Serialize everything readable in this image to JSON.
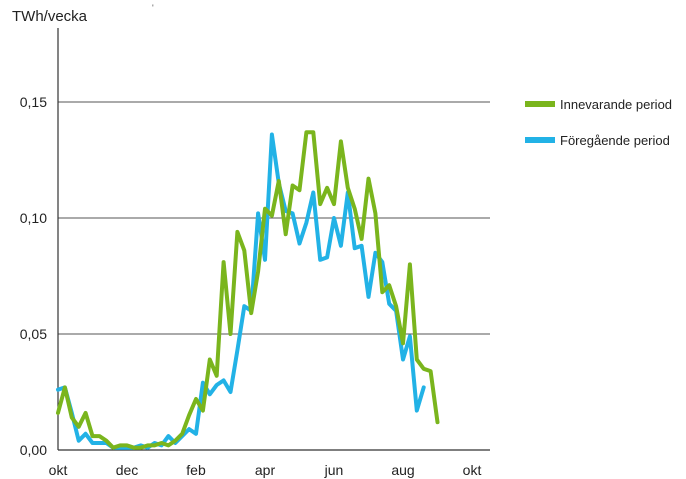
{
  "chart_data": {
    "type": "line",
    "ylabel": "TWh/vecka",
    "xlabel": "",
    "title": "",
    "ylim": [
      0,
      0.15
    ],
    "yticks": [
      {
        "value": 0,
        "label": "0,00"
      },
      {
        "value": 0.05,
        "label": "0,05"
      },
      {
        "value": 0.1,
        "label": "0,10"
      },
      {
        "value": 0.15,
        "label": "0,15"
      }
    ],
    "xticks": [
      {
        "week": 0,
        "label": "okt"
      },
      {
        "week": 10,
        "label": "dec"
      },
      {
        "week": 20,
        "label": "feb"
      },
      {
        "week": 30,
        "label": "apr"
      },
      {
        "week": 40,
        "label": "jun"
      },
      {
        "week": 50,
        "label": "aug"
      },
      {
        "week": 60,
        "label": "okt"
      }
    ],
    "grid": "horizontal",
    "legend_position": "right",
    "series": [
      {
        "name": "Innevarande period",
        "color": "#7ab51d",
        "values": [
          0.016,
          0.027,
          0.014,
          0.01,
          0.016,
          0.006,
          0.006,
          0.004,
          0.001,
          0.002,
          0.002,
          0.001,
          0.001,
          0.002,
          0.002,
          0.003,
          0.002,
          0.004,
          0.007,
          0.015,
          0.022,
          0.017,
          0.039,
          0.032,
          0.081,
          0.05,
          0.094,
          0.086,
          0.059,
          0.077,
          0.104,
          0.101,
          0.116,
          0.093,
          0.114,
          0.112,
          0.137,
          0.137,
          0.106,
          0.113,
          0.106,
          0.133,
          0.113,
          0.104,
          0.091,
          0.117,
          0.102,
          0.068,
          0.071,
          0.062,
          0.046,
          0.08,
          0.039,
          0.035,
          0.034,
          0.012
        ]
      },
      {
        "name": "Föregående period",
        "color": "#22b2e6",
        "values": [
          0.026,
          0.027,
          0.016,
          0.004,
          0.007,
          0.003,
          0.003,
          0.003,
          0.001,
          0.001,
          0.001,
          0.001,
          0.002,
          0.001,
          0.003,
          0.002,
          0.006,
          0.003,
          0.006,
          0.009,
          0.007,
          0.029,
          0.024,
          0.028,
          0.03,
          0.025,
          0.043,
          0.062,
          0.06,
          0.102,
          0.082,
          0.136,
          0.115,
          0.103,
          0.102,
          0.089,
          0.098,
          0.111,
          0.082,
          0.083,
          0.1,
          0.088,
          0.111,
          0.087,
          0.088,
          0.066,
          0.085,
          0.081,
          0.063,
          0.06,
          0.039,
          0.049,
          0.017,
          0.027
        ]
      }
    ]
  }
}
